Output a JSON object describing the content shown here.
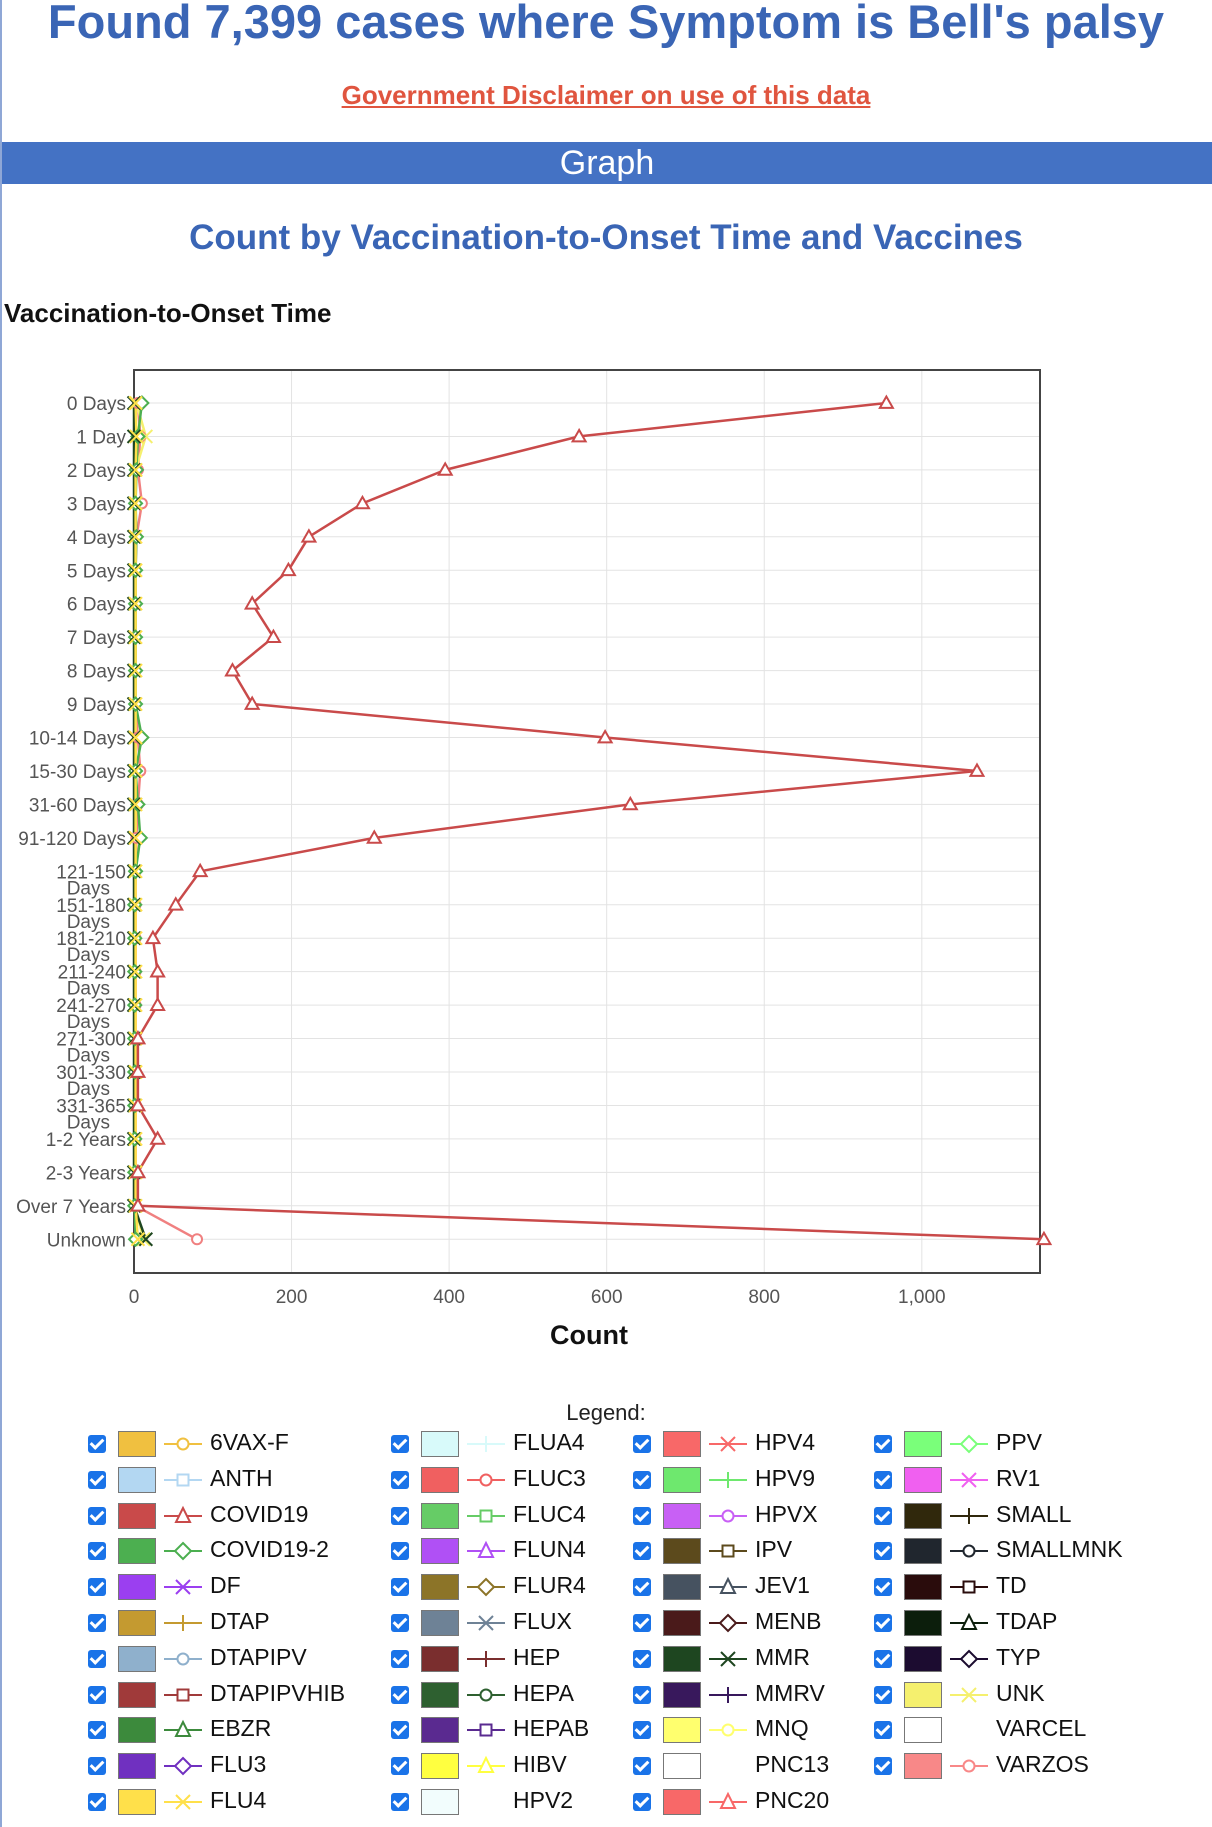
{
  "header": {
    "title": "Found 7,399 cases where Symptom is Bell's palsy",
    "disclaimer_link": "Government Disclaimer on use of this data",
    "band_label": "Graph"
  },
  "chart_data": {
    "type": "line",
    "title": "Count by Vaccination-to-Onset Time and Vaccines",
    "ylabel": "Vaccination-to-Onset Time",
    "xlabel": "Count",
    "xlim": [
      0,
      1150
    ],
    "x_ticks": [
      "0",
      "200",
      "400",
      "600",
      "800",
      "1,000"
    ],
    "x_tick_values": [
      0,
      200,
      400,
      600,
      800,
      1000
    ],
    "grid": true,
    "categories": [
      "0 Days",
      "1 Day",
      "2 Days",
      "3 Days",
      "4 Days",
      "5 Days",
      "6 Days",
      "7 Days",
      "8 Days",
      "9 Days",
      "10-14 Days",
      "15-30 Days",
      "31-60 Days",
      "91-120 Days",
      "121-150 Days",
      "151-180 Days",
      "181-210 Days",
      "211-240 Days",
      "241-270 Days",
      "271-300 Days",
      "301-330 Days",
      "331-365 Days",
      "1-2 Years",
      "2-3 Years",
      "Over 7 Years",
      "Unknown"
    ],
    "series": [
      {
        "name": "COVID19",
        "color": "#c94a4a",
        "marker": "triangle",
        "values": [
          955,
          565,
          395,
          290,
          222,
          196,
          150,
          177,
          125,
          150,
          598,
          1070,
          630,
          305,
          84,
          53,
          24,
          30,
          30,
          5,
          5,
          5,
          30,
          5,
          5,
          1155
        ]
      },
      {
        "name": "VARZOS",
        "color": "#f08080",
        "marker": "circle",
        "values": [
          5,
          8,
          5,
          10,
          3,
          2,
          2,
          2,
          2,
          2,
          5,
          8,
          5,
          3,
          2,
          2,
          2,
          2,
          2,
          2,
          2,
          2,
          2,
          2,
          2,
          80
        ]
      },
      {
        "name": "UNK",
        "color": "#f5f06e",
        "marker": "x",
        "values": [
          3,
          15,
          2,
          2,
          1,
          1,
          1,
          1,
          1,
          1,
          2,
          2,
          2,
          2,
          1,
          1,
          1,
          1,
          1,
          1,
          1,
          1,
          1,
          1,
          1,
          12
        ]
      },
      {
        "name": "COVID19-2",
        "color": "#4caf50",
        "marker": "diamond",
        "values": [
          10,
          5,
          3,
          2,
          3,
          2,
          2,
          2,
          2,
          2,
          10,
          2,
          5,
          8,
          2,
          1,
          1,
          1,
          1,
          1,
          1,
          1,
          1,
          1,
          1,
          2
        ]
      },
      {
        "name": "MMR",
        "color": "#1e4620",
        "marker": "x",
        "values": [
          0,
          0,
          0,
          0,
          0,
          0,
          0,
          0,
          0,
          0,
          0,
          0,
          0,
          0,
          0,
          0,
          0,
          0,
          0,
          0,
          0,
          0,
          0,
          0,
          0,
          15
        ]
      },
      {
        "name": "FLU4",
        "color": "#ffe04a",
        "marker": "x",
        "values": [
          2,
          3,
          2,
          2,
          2,
          2,
          2,
          2,
          2,
          2,
          2,
          2,
          2,
          2,
          2,
          2,
          2,
          2,
          2,
          2,
          2,
          2,
          2,
          2,
          2,
          5
        ]
      }
    ]
  },
  "legend": {
    "title": "Legend:",
    "items": [
      {
        "label": "6VAX-F",
        "color": "#f0c040",
        "marker": "circle"
      },
      {
        "label": "ANTH",
        "color": "#b3d7f2",
        "marker": "square"
      },
      {
        "label": "COVID19",
        "color": "#c94a4a",
        "marker": "triangle"
      },
      {
        "label": "COVID19-2",
        "color": "#4caf50",
        "marker": "diamond"
      },
      {
        "label": "DF",
        "color": "#9b3ff0",
        "marker": "x"
      },
      {
        "label": "DTAP",
        "color": "#c49a30",
        "marker": "plus"
      },
      {
        "label": "DTAPIPV",
        "color": "#8fb0cc",
        "marker": "circle"
      },
      {
        "label": "DTAPIPVHIB",
        "color": "#a03a3a",
        "marker": "square"
      },
      {
        "label": "EBZR",
        "color": "#3c8a3c",
        "marker": "triangle"
      },
      {
        "label": "FLU3",
        "color": "#7030c0",
        "marker": "diamond"
      },
      {
        "label": "FLU4",
        "color": "#ffe04a",
        "marker": "x"
      },
      {
        "label": "FLUA4",
        "color": "#d8fafa",
        "marker": "plus"
      },
      {
        "label": "FLUC3",
        "color": "#f06060",
        "marker": "circle"
      },
      {
        "label": "FLUC4",
        "color": "#66cc66",
        "marker": "square"
      },
      {
        "label": "FLUN4",
        "color": "#b050f5",
        "marker": "triangle"
      },
      {
        "label": "FLUR4",
        "color": "#8c7428",
        "marker": "diamond"
      },
      {
        "label": "FLUX",
        "color": "#6e8296",
        "marker": "x"
      },
      {
        "label": "HEP",
        "color": "#7a2e2e",
        "marker": "plus"
      },
      {
        "label": "HEPA",
        "color": "#2e6030",
        "marker": "circle"
      },
      {
        "label": "HEPAB",
        "color": "#5a2a90",
        "marker": "square"
      },
      {
        "label": "HIBV",
        "color": "#ffff40",
        "marker": "triangle"
      },
      {
        "label": "HPV2",
        "color": "#f2fdfd",
        "marker": "none"
      },
      {
        "label": "HPV4",
        "color": "#f86868",
        "marker": "x"
      },
      {
        "label": "HPV9",
        "color": "#6ee86e",
        "marker": "plus"
      },
      {
        "label": "HPVX",
        "color": "#c860f5",
        "marker": "circle"
      },
      {
        "label": "IPV",
        "color": "#5c4a1c",
        "marker": "square"
      },
      {
        "label": "JEV1",
        "color": "#465260",
        "marker": "triangle"
      },
      {
        "label": "MENB",
        "color": "#4a1a1a",
        "marker": "diamond"
      },
      {
        "label": "MMR",
        "color": "#1e4620",
        "marker": "x"
      },
      {
        "label": "MMRV",
        "color": "#38185c",
        "marker": "plus"
      },
      {
        "label": "MNQ",
        "color": "#ffff6e",
        "marker": "circle"
      },
      {
        "label": "PNC13",
        "color": "#ffffff",
        "marker": "none"
      },
      {
        "label": "PNC20",
        "color": "#f86868",
        "marker": "triangle"
      },
      {
        "label": "PPV",
        "color": "#7aff7a",
        "marker": "diamond"
      },
      {
        "label": "RV1",
        "color": "#f060f0",
        "marker": "x"
      },
      {
        "label": "SMALL",
        "color": "#30280c",
        "marker": "plus"
      },
      {
        "label": "SMALLMNK",
        "color": "#20262e",
        "marker": "circle"
      },
      {
        "label": "TD",
        "color": "#2a0c0c",
        "marker": "square"
      },
      {
        "label": "TDAP",
        "color": "#0c1e0c",
        "marker": "triangle"
      },
      {
        "label": "TYP",
        "color": "#1c0c30",
        "marker": "diamond"
      },
      {
        "label": "UNK",
        "color": "#f5f06e",
        "marker": "x"
      },
      {
        "label": "VARCEL",
        "color": "#ffffff",
        "marker": "none"
      },
      {
        "label": "VARZOS",
        "color": "#f88888",
        "marker": "circle"
      }
    ]
  }
}
